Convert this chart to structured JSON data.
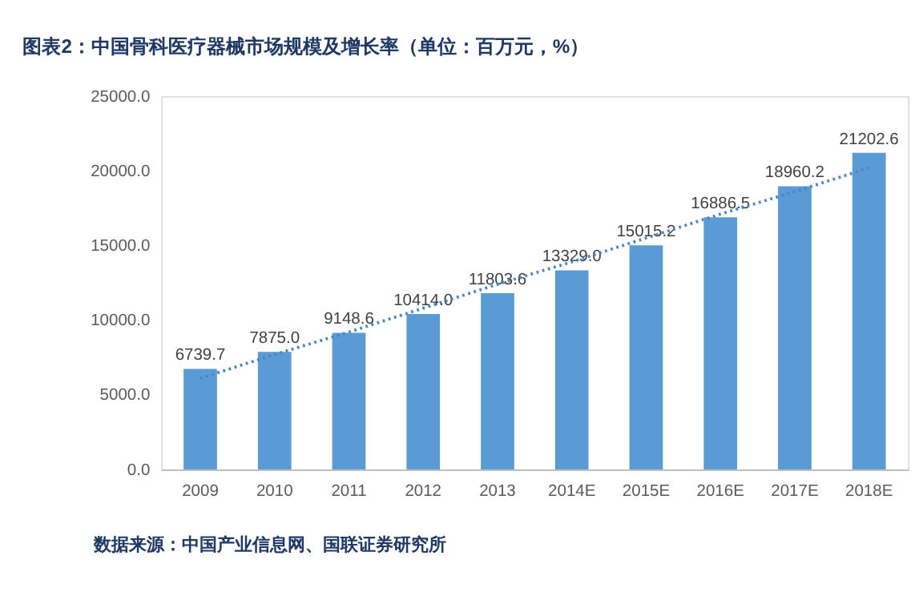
{
  "chart_data": {
    "type": "bar",
    "title": "图表2：中国骨科医疗器械市场规模及增长率（单位：百万元，%）",
    "categories": [
      "2009",
      "2010",
      "2011",
      "2012",
      "2013",
      "2014E",
      "2015E",
      "2016E",
      "2017E",
      "2018E"
    ],
    "series": [
      {
        "color": "#5b9bd5",
        "values": [
          6739.7,
          7875,
          9148.6,
          10414,
          11803.6,
          13329,
          15015.2,
          16886.5,
          18960.2,
          21202.6
        ],
        "value_labels": [
          "6739.7",
          "7875.0",
          "9148.6",
          "10414.0",
          "11803.6",
          "13329.0",
          "15015.2",
          "16886.5",
          "18960.2",
          "21202.6"
        ]
      },
      {
        "type": "line",
        "color": "#4a86c0",
        "line_style": "dotted",
        "values": [
          6100,
          7700,
          9200,
          10800,
          12400,
          13900,
          15500,
          17100,
          18600,
          20200
        ]
      }
    ],
    "ylim": [
      0,
      25000
    ],
    "yticks": [
      {
        "value": 0,
        "label": "0.0"
      },
      {
        "value": 5000,
        "label": "5000.0"
      },
      {
        "value": 10000,
        "label": "10000.0"
      },
      {
        "value": 15000,
        "label": "15000.0"
      },
      {
        "value": 20000,
        "label": "20000.0"
      },
      {
        "value": 25000,
        "label": "25000.0"
      }
    ],
    "grid": false,
    "annotations": [
      "数据来源：中国产业信息网、国联证券研究所"
    ]
  }
}
